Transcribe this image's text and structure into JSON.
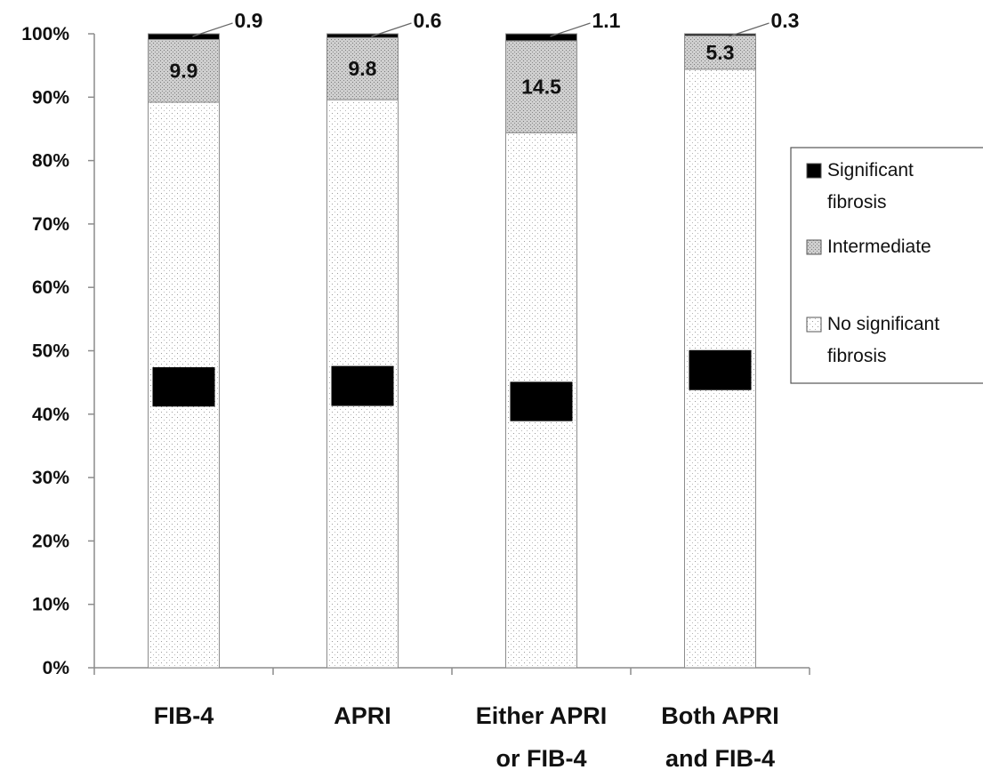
{
  "chart_data": {
    "type": "bar",
    "stacked": true,
    "percent_stacked": true,
    "categories": [
      [
        "FIB-4"
      ],
      [
        "APRI"
      ],
      [
        "Either APRI",
        "or FIB-4"
      ],
      [
        "Both APRI",
        "and FIB-4"
      ]
    ],
    "series": [
      {
        "name": "No significant fibrosis",
        "values": [
          89.2,
          89.6,
          84.4,
          94.4
        ],
        "color": "#ffffff",
        "pattern": "sparse-dots"
      },
      {
        "name": "Intermediate",
        "values": [
          9.9,
          9.8,
          14.5,
          5.3
        ],
        "color": "#c8c8c8",
        "pattern": "dense-dots"
      },
      {
        "name": "Significant fibrosis",
        "values": [
          0.9,
          0.6,
          1.1,
          0.3
        ],
        "color": "#000000",
        "pattern": "solid"
      }
    ],
    "inner_labels": [
      "9.9",
      "9.8",
      "14.5",
      "5.3"
    ],
    "top_labels": [
      "0.9",
      "0.6",
      "1.1",
      "0.3"
    ],
    "overlay_blocks": [
      {
        "from": 41.2,
        "to": 47.4
      },
      {
        "from": 41.3,
        "to": 47.6
      },
      {
        "from": 38.9,
        "to": 45.1
      },
      {
        "from": 43.8,
        "to": 50.1
      }
    ],
    "ylim": [
      0,
      100
    ],
    "yticks": [
      "0%",
      "10%",
      "20%",
      "30%",
      "40%",
      "50%",
      "60%",
      "70%",
      "80%",
      "90%",
      "100%"
    ],
    "xlabel": "",
    "ylabel": "",
    "grid": false,
    "legend": {
      "position": "right",
      "entries": [
        {
          "lines": [
            "Significant",
            "fibrosis"
          ]
        },
        {
          "lines": [
            "Intermediate"
          ]
        },
        {
          "lines": [
            "No significant",
            "fibrosis"
          ]
        }
      ]
    }
  }
}
